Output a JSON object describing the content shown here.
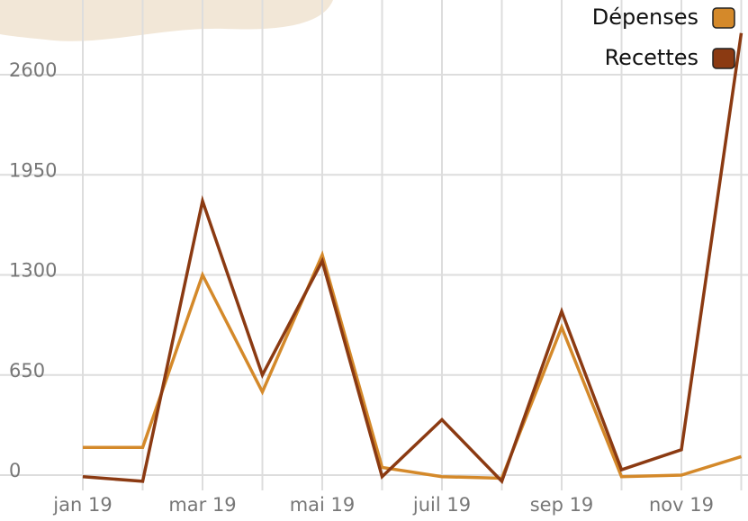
{
  "chart_data": {
    "type": "line",
    "categories": [
      "jan 19",
      null,
      "mar 19",
      null,
      "mai 19",
      null,
      "juil 19",
      null,
      "sep 19",
      null,
      "nov 19",
      null
    ],
    "series": [
      {
        "name": "Dépenses",
        "color": "#d4892a",
        "values": [
          180,
          180,
          1300,
          540,
          1430,
          50,
          -10,
          -20,
          960,
          -10,
          0,
          120
        ]
      },
      {
        "name": "Recettes",
        "color": "#8b3a12",
        "values": [
          -10,
          -40,
          1780,
          650,
          1390,
          -10,
          360,
          -40,
          1063,
          35,
          165,
          2870
        ]
      }
    ],
    "ylim": [
      -70,
      3085
    ],
    "yticks": [
      0,
      650,
      1300,
      1950,
      2600
    ],
    "grid": true,
    "legend": "top-right"
  }
}
